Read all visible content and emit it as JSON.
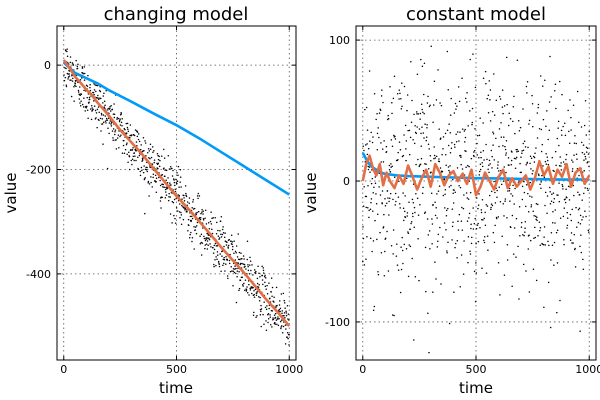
{
  "chart_data": [
    {
      "type": "line",
      "title": "changing model",
      "xlabel": "time",
      "ylabel": "value",
      "xlim": [
        -30,
        1030
      ],
      "ylim": [
        -565,
        75
      ],
      "xticks": [
        0,
        500,
        1000
      ],
      "yticks": [
        0,
        -200,
        -400
      ],
      "grid": true,
      "scatter": {
        "color": "#000000",
        "count": 1000,
        "x_range": [
          0,
          1000
        ],
        "trend": {
          "start": 0,
          "end": -500
        },
        "spread": 25
      },
      "series": [
        {
          "color": "#009af9",
          "x": [
            0,
            50,
            100,
            150,
            200,
            300,
            400,
            500,
            600,
            700,
            800,
            900,
            1000
          ],
          "y": [
            5,
            -15,
            -25,
            -35,
            -48,
            -70,
            -93,
            -115,
            -140,
            -167,
            -194,
            -221,
            -248
          ]
        },
        {
          "color": "#e26f46",
          "x": [
            0,
            25,
            50,
            75,
            100,
            125,
            150,
            175,
            200,
            250,
            300,
            350,
            400,
            450,
            500,
            550,
            600,
            650,
            700,
            750,
            800,
            850,
            900,
            950,
            1000
          ],
          "y": [
            10,
            -5,
            -22,
            -34,
            -47,
            -58,
            -72,
            -84,
            -97,
            -124,
            -148,
            -172,
            -199,
            -225,
            -251,
            -274,
            -299,
            -324,
            -350,
            -374,
            -398,
            -424,
            -450,
            -474,
            -500
          ]
        }
      ]
    },
    {
      "type": "line",
      "title": "constant model",
      "xlabel": "time",
      "ylabel": "value",
      "xlim": [
        -30,
        1030
      ],
      "ylim": [
        -127,
        110
      ],
      "xticks": [
        0,
        500,
        1000
      ],
      "yticks": [
        100,
        0,
        -100
      ],
      "grid": true,
      "scatter": {
        "color": "#000000",
        "count": 1000,
        "x_range": [
          0,
          1000
        ],
        "trend": {
          "start": 0,
          "end": 0
        },
        "spread": 38
      },
      "series": [
        {
          "color": "#009af9",
          "x": [
            0,
            20,
            40,
            60,
            80,
            100,
            150,
            200,
            300,
            400,
            500,
            600,
            700,
            800,
            900,
            1000
          ],
          "y": [
            20,
            14,
            10,
            8,
            6,
            5,
            4,
            3.5,
            3,
            2.5,
            2,
            1.8,
            1.5,
            1.2,
            1,
            1
          ]
        },
        {
          "color": "#e26f46",
          "x": [
            0,
            15,
            30,
            45,
            60,
            75,
            90,
            105,
            120,
            140,
            160,
            180,
            200,
            220,
            240,
            260,
            280,
            300,
            320,
            340,
            360,
            380,
            400,
            420,
            440,
            460,
            480,
            500,
            520,
            540,
            560,
            580,
            600,
            620,
            640,
            660,
            680,
            700,
            720,
            740,
            760,
            780,
            800,
            820,
            840,
            860,
            880,
            900,
            920,
            940,
            960,
            980,
            1000
          ],
          "y": [
            0,
            12,
            18,
            9,
            4,
            12,
            -3,
            6,
            0,
            -5,
            4,
            -2,
            11,
            3,
            -6,
            2,
            8,
            -4,
            12,
            6,
            -3,
            4,
            7,
            0,
            5,
            -2,
            8,
            -10,
            -4,
            6,
            0,
            -6,
            3,
            8,
            -5,
            2,
            -4,
            0,
            4,
            -6,
            2,
            14,
            4,
            10,
            -2,
            8,
            3,
            12,
            -4,
            6,
            9,
            -2,
            4
          ]
        }
      ]
    }
  ]
}
